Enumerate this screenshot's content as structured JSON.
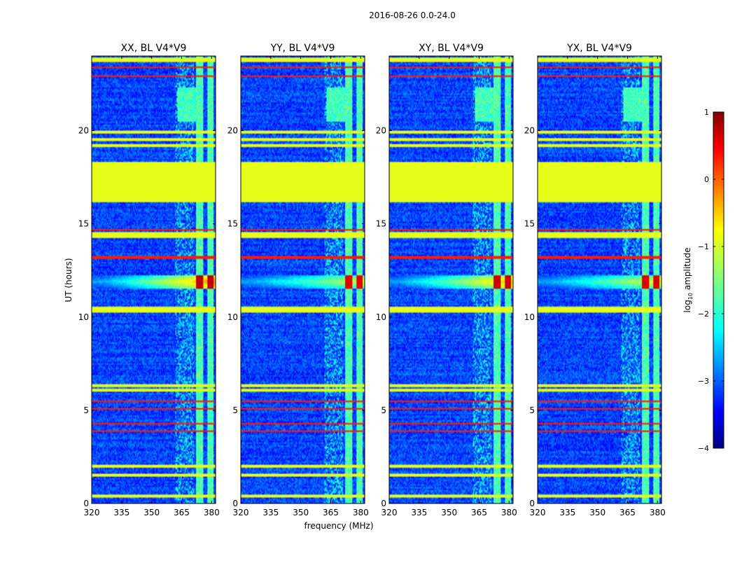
{
  "chart_data": {
    "type": "heatmap",
    "title": "2016-08-26 0.0-24.0",
    "xlabel": "frequency (MHz)",
    "ylabel": "UT (hours)",
    "xlim": [
      320,
      382
    ],
    "ylim": [
      0,
      24
    ],
    "xticks": [
      320,
      335,
      350,
      365,
      380
    ],
    "yticks": [
      0,
      5,
      10,
      15,
      20
    ],
    "panels": [
      {
        "name": "XX, BL V4*V9",
        "title": "XX, BL V4*V9",
        "rfi_strength": 1.0
      },
      {
        "name": "YY, BL V4*V9",
        "title": "YY, BL V4*V9",
        "rfi_strength": 0.65
      },
      {
        "name": "XY, BL V4*V9",
        "title": "XY, BL V4*V9",
        "rfi_strength": 0.9
      },
      {
        "name": "YX, BL V4*V9",
        "title": "YX, BL V4*V9",
        "rfi_strength": 0.7
      }
    ],
    "colorbar": {
      "label": "log10 amplitude",
      "label_main": "log",
      "label_sub": "10",
      "label_rest": " amplitude",
      "range": [
        -4,
        1
      ],
      "ticks": [
        "1",
        "0",
        "−1",
        "−2",
        "−3",
        "−4"
      ]
    },
    "features": {
      "blanked_ut": [
        [
          16.2,
          18.3
        ]
      ],
      "flag_ut": [
        0.4,
        1.5,
        2.0,
        6.1,
        6.3,
        10.3,
        10.5,
        14.3,
        14.5,
        19.2,
        19.5,
        19.9,
        23.8
      ],
      "rfi_ut": [
        3.9,
        4.3,
        5.1,
        5.5,
        13.2,
        14.7,
        22.9,
        23.4
      ],
      "bright_channel_mhz": [
        [
          372,
          376
        ],
        [
          378,
          381
        ]
      ],
      "strong_event_ut": 11.9,
      "amplitude_scale": [
        -4,
        1
      ]
    }
  }
}
